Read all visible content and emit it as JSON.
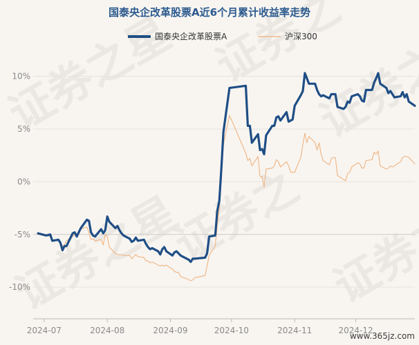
{
  "chart_data": {
    "type": "line",
    "title": "国泰央企改革股票A近6个月累计收益率走势",
    "legend_position": "top",
    "grid": "horizontal",
    "y_unit": "%",
    "ylim": [
      -13,
      12
    ],
    "y_ticks": [
      "10%",
      "5%",
      "0%",
      "-5%",
      "-10%"
    ],
    "y_tick_values": [
      10,
      5,
      0,
      -5,
      -10
    ],
    "x_ticks": [
      "2024-07",
      "2024-08",
      "2024-09",
      "2024-10",
      "2024-11",
      "2024-12"
    ],
    "x_tick_dates": [
      "2024-07-01",
      "2024-08-01",
      "2024-09-01",
      "2024-10-01",
      "2024-11-01",
      "2024-12-01"
    ],
    "series": [
      {
        "name": "国泰央企改革股票A",
        "color": "#1f4e85",
        "points": [
          [
            "2024-06-28",
            -4.9
          ],
          [
            "2024-07-02",
            -5.1
          ],
          [
            "2024-07-04",
            -5.0
          ],
          [
            "2024-07-05",
            -5.6
          ],
          [
            "2024-07-08",
            -5.5
          ],
          [
            "2024-07-09",
            -5.8
          ],
          [
            "2024-07-10",
            -6.5
          ],
          [
            "2024-07-11",
            -6.1
          ],
          [
            "2024-07-12",
            -6.1
          ],
          [
            "2024-07-15",
            -4.9
          ],
          [
            "2024-07-16",
            -4.8
          ],
          [
            "2024-07-17",
            -5.2
          ],
          [
            "2024-07-18",
            -4.8
          ],
          [
            "2024-07-19",
            -4.4
          ],
          [
            "2024-07-22",
            -3.6
          ],
          [
            "2024-07-23",
            -3.7
          ],
          [
            "2024-07-24",
            -4.8
          ],
          [
            "2024-07-25",
            -5.1
          ],
          [
            "2024-07-26",
            -5.2
          ],
          [
            "2024-07-29",
            -4.5
          ],
          [
            "2024-07-30",
            -4.9
          ],
          [
            "2024-07-31",
            -4.6
          ],
          [
            "2024-08-01",
            -3.3
          ],
          [
            "2024-08-02",
            -3.8
          ],
          [
            "2024-08-05",
            -4.4
          ],
          [
            "2024-08-06",
            -4.2
          ],
          [
            "2024-08-07",
            -4.6
          ],
          [
            "2024-08-08",
            -4.9
          ],
          [
            "2024-08-09",
            -5.1
          ],
          [
            "2024-08-12",
            -5.4
          ],
          [
            "2024-08-13",
            -5.7
          ],
          [
            "2024-08-14",
            -5.6
          ],
          [
            "2024-08-15",
            -5.3
          ],
          [
            "2024-08-16",
            -5.6
          ],
          [
            "2024-08-19",
            -5.5
          ],
          [
            "2024-08-20",
            -5.9
          ],
          [
            "2024-08-21",
            -6.2
          ],
          [
            "2024-08-22",
            -6.4
          ],
          [
            "2024-08-23",
            -6.3
          ],
          [
            "2024-08-26",
            -6.6
          ],
          [
            "2024-08-27",
            -6.9
          ],
          [
            "2024-08-28",
            -6.4
          ],
          [
            "2024-08-29",
            -6.2
          ],
          [
            "2024-08-30",
            -6.6
          ],
          [
            "2024-09-02",
            -7.0
          ],
          [
            "2024-09-03",
            -6.7
          ],
          [
            "2024-09-04",
            -6.6
          ],
          [
            "2024-09-05",
            -6.8
          ],
          [
            "2024-09-06",
            -7.0
          ],
          [
            "2024-09-09",
            -7.3
          ],
          [
            "2024-09-10",
            -7.4
          ],
          [
            "2024-09-11",
            -7.6
          ],
          [
            "2024-09-12",
            -7.3
          ],
          [
            "2024-09-13",
            -7.3
          ],
          [
            "2024-09-18",
            -7.2
          ],
          [
            "2024-09-19",
            -6.8
          ],
          [
            "2024-09-20",
            -5.2
          ],
          [
            "2024-09-23",
            -5.1
          ],
          [
            "2024-09-24",
            -2.8
          ],
          [
            "2024-09-25",
            -1.8
          ],
          [
            "2024-09-26",
            1.2
          ],
          [
            "2024-09-27",
            4.7
          ],
          [
            "2024-09-30",
            8.9
          ],
          [
            "2024-10-08",
            9.1
          ],
          [
            "2024-10-09",
            5.3
          ],
          [
            "2024-10-10",
            5.3
          ],
          [
            "2024-10-11",
            3.7
          ],
          [
            "2024-10-14",
            4.5
          ],
          [
            "2024-10-15",
            3.0
          ],
          [
            "2024-10-16",
            3.1
          ],
          [
            "2024-10-17",
            2.6
          ],
          [
            "2024-10-18",
            4.4
          ],
          [
            "2024-10-21",
            5.3
          ],
          [
            "2024-10-22",
            5.3
          ],
          [
            "2024-10-23",
            6.1
          ],
          [
            "2024-10-24",
            6.2
          ],
          [
            "2024-10-25",
            5.8
          ],
          [
            "2024-10-28",
            6.6
          ],
          [
            "2024-10-29",
            5.7
          ],
          [
            "2024-10-30",
            5.8
          ],
          [
            "2024-10-31",
            5.9
          ],
          [
            "2024-11-01",
            7.2
          ],
          [
            "2024-11-04",
            8.2
          ],
          [
            "2024-11-05",
            8.6
          ],
          [
            "2024-11-06",
            10.3
          ],
          [
            "2024-11-07",
            9.8
          ],
          [
            "2024-11-08",
            9.3
          ],
          [
            "2024-11-11",
            9.3
          ],
          [
            "2024-11-12",
            8.7
          ],
          [
            "2024-11-13",
            8.3
          ],
          [
            "2024-11-14",
            8.1
          ],
          [
            "2024-11-15",
            8.2
          ],
          [
            "2024-11-18",
            7.9
          ],
          [
            "2024-11-19",
            8.3
          ],
          [
            "2024-11-20",
            8.3
          ],
          [
            "2024-11-21",
            8.3
          ],
          [
            "2024-11-22",
            7.1
          ],
          [
            "2024-11-25",
            6.9
          ],
          [
            "2024-11-26",
            7.1
          ],
          [
            "2024-11-27",
            7.6
          ],
          [
            "2024-11-28",
            7.5
          ],
          [
            "2024-11-29",
            8.1
          ],
          [
            "2024-12-02",
            8.3
          ],
          [
            "2024-12-03",
            8.1
          ],
          [
            "2024-12-04",
            7.7
          ],
          [
            "2024-12-05",
            7.6
          ],
          [
            "2024-12-06",
            8.7
          ],
          [
            "2024-12-09",
            8.7
          ],
          [
            "2024-12-10",
            9.4
          ],
          [
            "2024-12-11",
            9.8
          ],
          [
            "2024-12-12",
            10.3
          ],
          [
            "2024-12-13",
            9.3
          ],
          [
            "2024-12-16",
            8.9
          ],
          [
            "2024-12-17",
            8.4
          ],
          [
            "2024-12-18",
            8.6
          ],
          [
            "2024-12-19",
            8.3
          ],
          [
            "2024-12-20",
            8.0
          ],
          [
            "2024-12-23",
            8.1
          ],
          [
            "2024-12-24",
            8.5
          ],
          [
            "2024-12-25",
            8.0
          ],
          [
            "2024-12-26",
            8.3
          ],
          [
            "2024-12-27",
            7.6
          ],
          [
            "2024-12-30",
            7.2
          ]
        ]
      },
      {
        "name": "沪深300",
        "color": "#f0b888",
        "points": [
          [
            "2024-06-28",
            -4.9
          ],
          [
            "2024-07-02",
            -5.1
          ],
          [
            "2024-07-04",
            -5.2
          ],
          [
            "2024-07-05",
            -5.6
          ],
          [
            "2024-07-08",
            -5.6
          ],
          [
            "2024-07-09",
            -5.8
          ],
          [
            "2024-07-10",
            -6.1
          ],
          [
            "2024-07-11",
            -6.0
          ],
          [
            "2024-07-12",
            -5.6
          ],
          [
            "2024-07-15",
            -5.2
          ],
          [
            "2024-07-16",
            -5.0
          ],
          [
            "2024-07-17",
            -5.1
          ],
          [
            "2024-07-18",
            -5.0
          ],
          [
            "2024-07-19",
            -4.5
          ],
          [
            "2024-07-22",
            -4.3
          ],
          [
            "2024-07-23",
            -4.8
          ],
          [
            "2024-07-24",
            -5.5
          ],
          [
            "2024-07-25",
            -5.4
          ],
          [
            "2024-07-26",
            -5.6
          ],
          [
            "2024-07-29",
            -5.5
          ],
          [
            "2024-07-30",
            -6.0
          ],
          [
            "2024-07-31",
            -5.0
          ],
          [
            "2024-08-01",
            -5.2
          ],
          [
            "2024-08-02",
            -6.2
          ],
          [
            "2024-08-05",
            -6.8
          ],
          [
            "2024-08-06",
            -6.9
          ],
          [
            "2024-08-07",
            -6.9
          ],
          [
            "2024-08-08",
            -6.9
          ],
          [
            "2024-08-09",
            -7.0
          ],
          [
            "2024-08-12",
            -7.0
          ],
          [
            "2024-08-13",
            -7.3
          ],
          [
            "2024-08-14",
            -7.1
          ],
          [
            "2024-08-15",
            -6.9
          ],
          [
            "2024-08-16",
            -7.1
          ],
          [
            "2024-08-19",
            -7.2
          ],
          [
            "2024-08-20",
            -7.5
          ],
          [
            "2024-08-21",
            -7.5
          ],
          [
            "2024-08-22",
            -7.7
          ],
          [
            "2024-08-23",
            -7.6
          ],
          [
            "2024-08-26",
            -7.9
          ],
          [
            "2024-08-27",
            -8.0
          ],
          [
            "2024-08-28",
            -7.9
          ],
          [
            "2024-08-29",
            -8.0
          ],
          [
            "2024-08-30",
            -7.9
          ],
          [
            "2024-09-02",
            -8.3
          ],
          [
            "2024-09-03",
            -8.5
          ],
          [
            "2024-09-04",
            -8.6
          ],
          [
            "2024-09-05",
            -8.6
          ],
          [
            "2024-09-06",
            -9.0
          ],
          [
            "2024-09-09",
            -9.2
          ],
          [
            "2024-09-10",
            -9.3
          ],
          [
            "2024-09-11",
            -9.4
          ],
          [
            "2024-09-12",
            -9.3
          ],
          [
            "2024-09-13",
            -9.1
          ],
          [
            "2024-09-18",
            -8.9
          ],
          [
            "2024-09-19",
            -8.0
          ],
          [
            "2024-09-20",
            -7.0
          ],
          [
            "2024-09-23",
            -6.1
          ],
          [
            "2024-09-24",
            -4.1
          ],
          [
            "2024-09-25",
            -2.5
          ],
          [
            "2024-09-26",
            0.5
          ],
          [
            "2024-09-27",
            3.5
          ],
          [
            "2024-09-30",
            6.3
          ],
          [
            "2024-10-08",
            2.7
          ],
          [
            "2024-10-09",
            2.0
          ],
          [
            "2024-10-10",
            2.2
          ],
          [
            "2024-10-11",
            1.5
          ],
          [
            "2024-10-14",
            2.4
          ],
          [
            "2024-10-15",
            0.5
          ],
          [
            "2024-10-16",
            0.5
          ],
          [
            "2024-10-17",
            -0.5
          ],
          [
            "2024-10-18",
            1.2
          ],
          [
            "2024-10-21",
            1.3
          ],
          [
            "2024-10-22",
            1.5
          ],
          [
            "2024-10-23",
            2.1
          ],
          [
            "2024-10-24",
            1.9
          ],
          [
            "2024-10-25",
            1.4
          ],
          [
            "2024-10-28",
            1.9
          ],
          [
            "2024-10-29",
            1.5
          ],
          [
            "2024-10-30",
            0.9
          ],
          [
            "2024-10-31",
            0.9
          ],
          [
            "2024-11-01",
            0.9
          ],
          [
            "2024-11-04",
            2.3
          ],
          [
            "2024-11-05",
            3.5
          ],
          [
            "2024-11-06",
            4.6
          ],
          [
            "2024-11-07",
            3.7
          ],
          [
            "2024-11-08",
            4.3
          ],
          [
            "2024-11-11",
            3.7
          ],
          [
            "2024-11-12",
            3.0
          ],
          [
            "2024-11-13",
            3.7
          ],
          [
            "2024-11-14",
            2.6
          ],
          [
            "2024-11-15",
            2.0
          ],
          [
            "2024-11-18",
            1.6
          ],
          [
            "2024-11-19",
            2.2
          ],
          [
            "2024-11-20",
            2.3
          ],
          [
            "2024-11-21",
            2.3
          ],
          [
            "2024-11-22",
            0.6
          ],
          [
            "2024-11-25",
            0.2
          ],
          [
            "2024-11-26",
            0.1
          ],
          [
            "2024-11-27",
            0.8
          ],
          [
            "2024-11-28",
            0.9
          ],
          [
            "2024-11-29",
            1.4
          ],
          [
            "2024-12-02",
            1.8
          ],
          [
            "2024-12-03",
            1.7
          ],
          [
            "2024-12-04",
            1.3
          ],
          [
            "2024-12-05",
            1.3
          ],
          [
            "2024-12-06",
            2.0
          ],
          [
            "2024-12-09",
            2.1
          ],
          [
            "2024-12-10",
            2.8
          ],
          [
            "2024-12-11",
            2.6
          ],
          [
            "2024-12-12",
            2.9
          ],
          [
            "2024-12-13",
            1.5
          ],
          [
            "2024-12-16",
            1.2
          ],
          [
            "2024-12-17",
            1.3
          ],
          [
            "2024-12-18",
            1.5
          ],
          [
            "2024-12-19",
            1.4
          ],
          [
            "2024-12-20",
            1.5
          ],
          [
            "2024-12-23",
            1.9
          ],
          [
            "2024-12-24",
            2.3
          ],
          [
            "2024-12-25",
            2.4
          ],
          [
            "2024-12-26",
            2.4
          ],
          [
            "2024-12-27",
            2.3
          ],
          [
            "2024-12-30",
            1.7
          ]
        ]
      }
    ]
  },
  "watermarks": [
    "证券之星",
    "证券之星",
    "证券之",
    "证券之",
    "证券之星",
    "证券之"
  ],
  "site_label": "www.365jz.com"
}
